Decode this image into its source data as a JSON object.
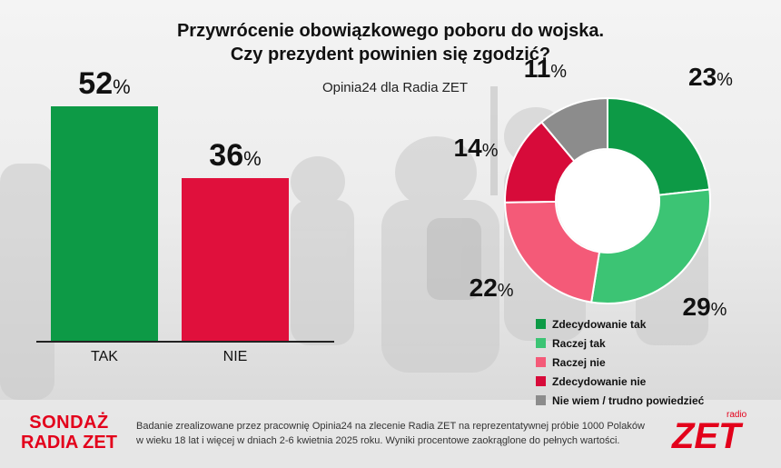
{
  "header": {
    "title_line1": "Przywrócenie obowiązkowego poboru do wojska.",
    "title_line2": "Czy prezydent powinien się zgodzić?",
    "source": "Opinia24 dla Radia ZET"
  },
  "colors": {
    "tak": "#0d9a46",
    "nie": "#e0103c",
    "zdecydowanie_tak": "#0d9a46",
    "raczej_tak": "#3cc474",
    "raczej_nie": "#f45a78",
    "zdecydowanie_nie": "#d70b3a",
    "nie_wiem": "#8c8c8c",
    "brand_red": "#e3001b"
  },
  "chart_data": [
    {
      "type": "bar",
      "categories": [
        "TAK",
        "NIE"
      ],
      "values": [
        52,
        36
      ],
      "value_labels": [
        "52",
        "36"
      ],
      "unit": "%",
      "ylim": [
        0,
        52
      ],
      "grid": false
    },
    {
      "type": "pie",
      "donut": true,
      "categories": [
        "Zdecydowanie tak",
        "Raczej tak",
        "Raczej nie",
        "Zdecydowanie nie",
        "Nie wiem / trudno powiedzieć"
      ],
      "values": [
        23,
        29,
        22,
        14,
        11
      ],
      "value_labels": [
        "23",
        "29",
        "22",
        "14",
        "11"
      ],
      "unit": "%",
      "legend_placement": "bottom-right"
    }
  ],
  "footer": {
    "badge_line1": "SONDAŻ",
    "badge_line2": "RADIA ZET",
    "note_line1": "Badanie zrealizowane przez pracownię Opinia24 na zlecenie Radia ZET na reprezentatywnej próbie 1000 Polaków",
    "note_line2": "w wieku 18 lat i więcej w dniach 2-6 kwietnia 2025 roku. Wyniki procentowe zaokrąglone do pełnych wartości.",
    "logo_small": "radio",
    "logo_main": "ZET"
  }
}
